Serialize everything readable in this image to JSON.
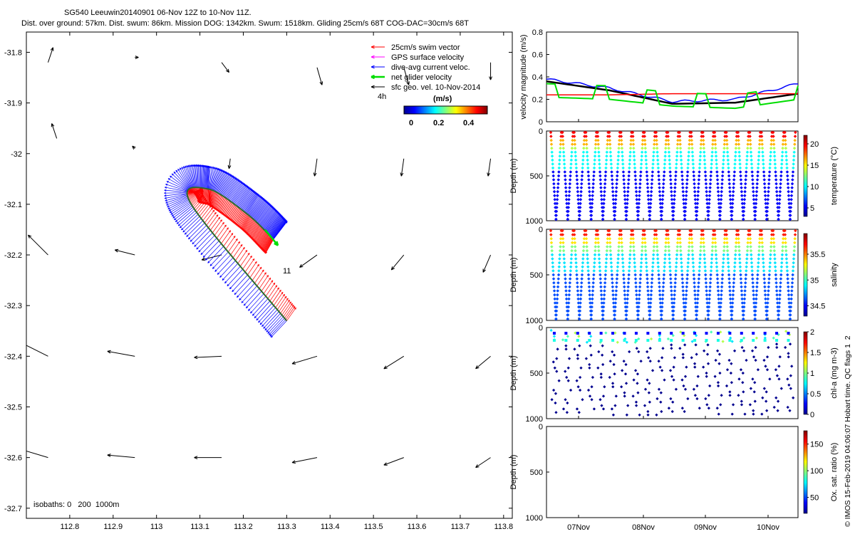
{
  "header": {
    "title_line1": "SG540 Leeuwin20140901 06-Nov 12Z to 10-Nov 11Z.",
    "title_line2": "Dist. over ground: 57km. Dist. swum: 86km. Mission DOG: 1342km. Swum: 1518km. Gliding 25cm/s 68T COG-DAC=30cm/s 68T"
  },
  "map": {
    "legend": [
      {
        "label": "25cm/s swim vector",
        "color": "#ff0000"
      },
      {
        "label": "GPS surface velocity",
        "color": "#ff00ff"
      },
      {
        "label": "dive-avg current veloc.",
        "color": "#0000ff"
      },
      {
        "label": "net glider velocity",
        "color": "#00dd00"
      },
      {
        "label": "sfc geo. vel. 10-Nov-2014",
        "color": "#000000"
      }
    ],
    "time_marker": "4h",
    "day_label": "11",
    "colorbar_unit": "(m/s)",
    "colorbar_ticks": [
      "0",
      "0.2",
      "0.4"
    ],
    "isobaths_note": "isobaths: 0   200  1000m",
    "colors": {
      "swim": "#ff0000",
      "current": "#0000ff",
      "track": "#2e6b2e",
      "net": "#00dd00",
      "geo": "#000000"
    }
  },
  "side_labels": {
    "velocity_ylabel": "velocity magnitude (m/s)",
    "depth_label": "Depth (m)",
    "temp_cbar_label": "temperature (°C)",
    "sal_cbar_label": "salinity",
    "chl_cbar_label": "chl-a (mg m-3)",
    "ox_cbar_label": "Ox. sat. ratio (%)",
    "footer": "© IMOS 15-Feb-2019 04:06:07 Hobart time. QC flags 1  2",
    "date_ticks": [
      "07Nov",
      "08Nov",
      "09Nov",
      "10Nov"
    ]
  },
  "chart_data": [
    {
      "type": "scatter",
      "title": "",
      "xlabel": "",
      "ylabel": "",
      "xlim": [
        112.7,
        113.82
      ],
      "ylim": [
        -32.72,
        -31.76
      ],
      "x_ticks": [
        112.8,
        112.9,
        113.0,
        113.1,
        113.2,
        113.3,
        113.4,
        113.5,
        113.6,
        113.7,
        113.8
      ],
      "y_ticks": [
        -31.8,
        -31.9,
        -32.0,
        -32.1,
        -32.2,
        -32.3,
        -32.4,
        -32.5,
        -32.6,
        -32.7
      ],
      "x_tick_labels": [
        "112.8",
        "112.9",
        "113",
        "113.1",
        "113.2",
        "113.3",
        "113.4",
        "113.5",
        "113.6",
        "113.7",
        "113.8"
      ],
      "y_tick_labels": [
        "-31.8",
        "-31.9",
        "-32",
        "-32.1",
        "-32.2",
        "-32.3",
        "-32.4",
        "-32.5",
        "-32.6",
        "-32.7"
      ],
      "glider_track": [
        [
          113.3,
          -32.33
        ],
        [
          113.08,
          -32.1
        ],
        [
          113.12,
          -32.07
        ],
        [
          113.21,
          -32.12
        ],
        [
          113.27,
          -32.17
        ]
      ],
      "geostrophic_vectors": [
        {
          "lon": 112.75,
          "lat": -31.82,
          "u": 0.2,
          "v": 0.6
        },
        {
          "lon": 112.95,
          "lat": -31.81,
          "u": 0.15,
          "v": 0.0
        },
        {
          "lon": 113.15,
          "lat": -31.82,
          "u": 0.3,
          "v": -0.4
        },
        {
          "lon": 113.37,
          "lat": -31.83,
          "u": 0.2,
          "v": -0.7
        },
        {
          "lon": 113.57,
          "lat": -31.83,
          "u": 0.2,
          "v": -0.7
        },
        {
          "lon": 113.77,
          "lat": -31.82,
          "u": 0.0,
          "v": -0.7
        },
        {
          "lon": 112.77,
          "lat": -31.97,
          "u": -0.2,
          "v": 0.6
        },
        {
          "lon": 112.95,
          "lat": -31.99,
          "u": -0.1,
          "v": 0.1
        },
        {
          "lon": 113.17,
          "lat": -32.01,
          "u": -0.05,
          "v": -0.4
        },
        {
          "lon": 113.37,
          "lat": -32.01,
          "u": -0.1,
          "v": -0.7
        },
        {
          "lon": 113.57,
          "lat": -32.01,
          "u": -0.1,
          "v": -0.7
        },
        {
          "lon": 113.77,
          "lat": -32.01,
          "u": -0.1,
          "v": -0.7
        },
        {
          "lon": 112.75,
          "lat": -32.2,
          "u": -0.8,
          "v": 0.8
        },
        {
          "lon": 112.95,
          "lat": -32.2,
          "u": -0.8,
          "v": 0.2
        },
        {
          "lon": 113.15,
          "lat": -32.2,
          "u": -0.8,
          "v": -0.2
        },
        {
          "lon": 113.37,
          "lat": -32.2,
          "u": -0.7,
          "v": -0.5
        },
        {
          "lon": 113.57,
          "lat": -32.2,
          "u": -0.5,
          "v": -0.6
        },
        {
          "lon": 113.77,
          "lat": -32.2,
          "u": -0.3,
          "v": -0.7
        },
        {
          "lon": 112.75,
          "lat": -32.4,
          "u": -1.0,
          "v": 0.5
        },
        {
          "lon": 112.95,
          "lat": -32.4,
          "u": -1.1,
          "v": 0.2
        },
        {
          "lon": 113.15,
          "lat": -32.4,
          "u": -1.1,
          "v": -0.05
        },
        {
          "lon": 113.37,
          "lat": -32.4,
          "u": -1.0,
          "v": -0.3
        },
        {
          "lon": 113.57,
          "lat": -32.4,
          "u": -0.8,
          "v": -0.5
        },
        {
          "lon": 113.77,
          "lat": -32.4,
          "u": -0.6,
          "v": -0.5
        },
        {
          "lon": 112.75,
          "lat": -32.6,
          "u": -1.0,
          "v": 0.3
        },
        {
          "lon": 112.95,
          "lat": -32.6,
          "u": -1.1,
          "v": 0.1
        },
        {
          "lon": 113.15,
          "lat": -32.6,
          "u": -1.1,
          "v": 0.0
        },
        {
          "lon": 113.37,
          "lat": -32.6,
          "u": -1.0,
          "v": -0.2
        },
        {
          "lon": 113.57,
          "lat": -32.6,
          "u": -0.8,
          "v": -0.3
        },
        {
          "lon": 113.77,
          "lat": -32.6,
          "u": -0.6,
          "v": -0.4
        }
      ]
    },
    {
      "type": "line",
      "title": "",
      "xlabel": "",
      "ylabel": "velocity magnitude (m/s)",
      "ylim": [
        0,
        0.8
      ],
      "y_ticks": [
        "0",
        "0.2",
        "0.4",
        "0.6",
        "0.8"
      ],
      "x": [
        "06-Nov 12Z",
        "07-Nov 12Z",
        "08-Nov 12Z",
        "09-Nov 12Z",
        "10-Nov 11Z"
      ],
      "series": [
        {
          "color": "#0000ff",
          "values": [
            0.38,
            0.3,
            0.18,
            0.2,
            0.34
          ]
        },
        {
          "color": "#000000",
          "values": [
            0.36,
            0.28,
            0.16,
            0.17,
            0.25
          ]
        },
        {
          "color": "#ff0000",
          "values": [
            0.24,
            0.24,
            0.25,
            0.25,
            0.25
          ]
        },
        {
          "color": "#00dd00",
          "values": [
            0.22,
            0.2,
            0.14,
            0.12,
            0.2
          ]
        }
      ]
    },
    {
      "type": "scatter",
      "title": "",
      "xlabel": "",
      "ylabel": "Depth (m)",
      "ylim": [
        1000,
        0
      ],
      "y_ticks": [
        "0",
        "500",
        "1000"
      ],
      "colorbar_label": "temperature (°C)",
      "colorbar_ticks": [
        "5",
        "10",
        "15",
        "20"
      ],
      "clim": [
        3,
        22
      ]
    },
    {
      "type": "scatter",
      "title": "",
      "xlabel": "",
      "ylabel": "Depth (m)",
      "ylim": [
        1000,
        0
      ],
      "y_ticks": [
        "0",
        "500",
        "1000"
      ],
      "colorbar_label": "salinity",
      "colorbar_ticks": [
        "34.5",
        "35",
        "35.5"
      ],
      "clim": [
        34.3,
        35.9
      ]
    },
    {
      "type": "scatter",
      "title": "",
      "xlabel": "",
      "ylabel": "Depth (m)",
      "ylim": [
        1000,
        0
      ],
      "y_ticks": [
        "0",
        "500",
        "1000"
      ],
      "colorbar_label": "chl-a (mg m-3)",
      "colorbar_ticks": [
        "0",
        "0.5",
        "1",
        "1.5",
        "2"
      ],
      "clim": [
        0,
        2
      ]
    },
    {
      "type": "scatter",
      "title": "",
      "xlabel": "",
      "ylabel": "Depth (m)",
      "ylim": [
        1000,
        0
      ],
      "y_ticks": [
        "0",
        "500",
        "1000"
      ],
      "colorbar_label": "Ox. sat. ratio (%)",
      "colorbar_ticks": [
        "50",
        "100",
        "150"
      ],
      "clim": [
        20,
        175
      ]
    }
  ]
}
